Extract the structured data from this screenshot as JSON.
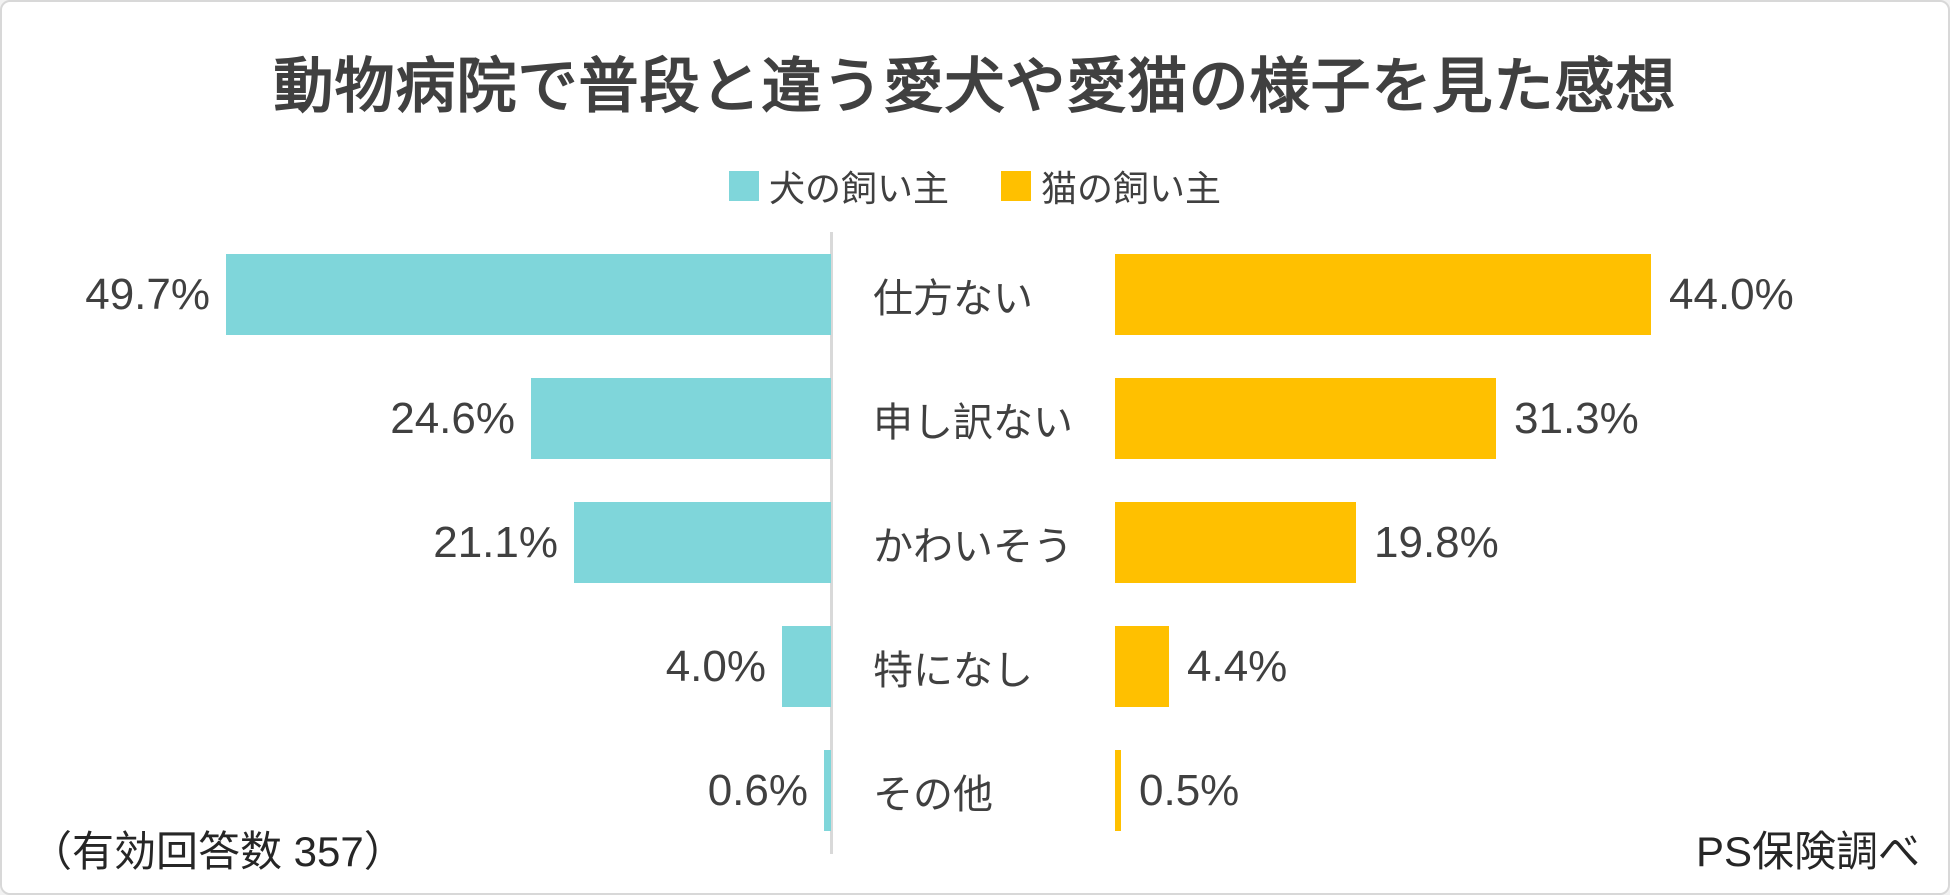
{
  "title": "動物病院で普段と違う愛犬や愛猫の様子を見た感想",
  "footnotes": {
    "left": "（有効回答数 357）",
    "right": "PS保険調べ"
  },
  "colors": {
    "background": "#FFFFFF",
    "border": "#D8D8D8",
    "axis_line": "#D9D9D9",
    "title_text": "#404040",
    "label_text": "#404040",
    "dog_bar": "#7FD6DA",
    "cat_bar": "#FFC000"
  },
  "chart_data": {
    "type": "bar",
    "orientation": "horizontal",
    "layout": "diverging-tornado",
    "title": "動物病院で普段と違う愛犬や愛猫の様子を見た感想",
    "categories": [
      "仕方ない",
      "申し訳ない",
      "かわいそう",
      "特になし",
      "その他"
    ],
    "series": [
      {
        "name": "犬の飼い主",
        "side": "left",
        "color": "#7FD6DA",
        "values": [
          49.7,
          24.6,
          21.1,
          4.0,
          0.6
        ],
        "labels": [
          "49.7%",
          "24.6%",
          "21.1%",
          "4.0%",
          "0.6%"
        ]
      },
      {
        "name": "猫の飼い主",
        "side": "right",
        "color": "#FFC000",
        "values": [
          44.0,
          31.3,
          19.8,
          4.4,
          0.5
        ],
        "labels": [
          "44.0%",
          "31.3%",
          "19.8%",
          "4.4%",
          "0.5%"
        ]
      }
    ],
    "xlim": [
      0,
      55
    ],
    "grid": false,
    "legend_position": "top-center",
    "sample_note": "（有効回答数 357）",
    "source_note": "PS保険調べ"
  }
}
